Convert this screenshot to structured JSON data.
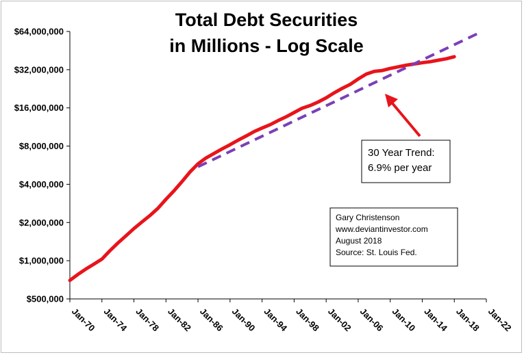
{
  "chart_data": {
    "type": "line",
    "title_lines": [
      "Total Debt Securities",
      "in Millions - Log Scale"
    ],
    "y_scale": "log2",
    "ylim": [
      500000,
      64000000
    ],
    "y_ticks": [
      {
        "value": 500000,
        "label": "$500,000"
      },
      {
        "value": 1000000,
        "label": "$1,000,000"
      },
      {
        "value": 2000000,
        "label": "$2,000,000"
      },
      {
        "value": 4000000,
        "label": "$4,000,000"
      },
      {
        "value": 8000000,
        "label": "$8,000,000"
      },
      {
        "value": 16000000,
        "label": "$16,000,000"
      },
      {
        "value": 32000000,
        "label": "$32,000,000"
      },
      {
        "value": 64000000,
        "label": "$64,000,000"
      }
    ],
    "xlim": [
      1970,
      2022
    ],
    "x_ticks": [
      {
        "value": 1970,
        "label": "Jan-70"
      },
      {
        "value": 1974,
        "label": "Jan-74"
      },
      {
        "value": 1978,
        "label": "Jan-78"
      },
      {
        "value": 1982,
        "label": "Jan-82"
      },
      {
        "value": 1986,
        "label": "Jan-86"
      },
      {
        "value": 1990,
        "label": "Jan-90"
      },
      {
        "value": 1994,
        "label": "Jan-94"
      },
      {
        "value": 1998,
        "label": "Jan-98"
      },
      {
        "value": 2002,
        "label": "Jan-02"
      },
      {
        "value": 2006,
        "label": "Jan-06"
      },
      {
        "value": 2010,
        "label": "Jan-10"
      },
      {
        "value": 2014,
        "label": "Jan-14"
      },
      {
        "value": 2018,
        "label": "Jan-18"
      },
      {
        "value": 2022,
        "label": "Jan-22"
      }
    ],
    "series": [
      {
        "name": "Total Debt Securities",
        "color": "#e8141b",
        "style": "solid",
        "x": [
          1970,
          1971,
          1972,
          1973,
          1974,
          1975,
          1976,
          1977,
          1978,
          1979,
          1980,
          1981,
          1982,
          1983,
          1984,
          1985,
          1986,
          1987,
          1988,
          1989,
          1990,
          1991,
          1992,
          1993,
          1994,
          1995,
          1996,
          1997,
          1998,
          1999,
          2000,
          2001,
          2002,
          2003,
          2004,
          2005,
          2006,
          2007,
          2008,
          2009,
          2010,
          2011,
          2012,
          2013,
          2014,
          2015,
          2016,
          2017,
          2018
        ],
        "y": [
          700000,
          780000,
          860000,
          940000,
          1030000,
          1200000,
          1380000,
          1570000,
          1790000,
          2020000,
          2270000,
          2590000,
          3050000,
          3550000,
          4200000,
          5000000,
          5800000,
          6450000,
          7000000,
          7600000,
          8200000,
          8900000,
          9600000,
          10400000,
          11100000,
          11800000,
          12700000,
          13600000,
          14700000,
          15900000,
          16700000,
          17800000,
          19200000,
          21000000,
          22800000,
          24500000,
          27000000,
          29500000,
          31000000,
          31500000,
          32700000,
          33700000,
          34700000,
          35500000,
          36300000,
          37000000,
          38000000,
          39000000,
          40500000
        ]
      },
      {
        "name": "30 Year Trend",
        "color": "#7b3fb6",
        "style": "dashed",
        "x": [
          1986,
          2021
        ],
        "y": [
          5500000,
          62000000
        ]
      }
    ],
    "annotations": [
      {
        "text_lines": [
          "30 Year Trend:",
          "6.9% per year"
        ]
      },
      {
        "text_lines": [
          "Gary Christenson",
          "www.deviantinvestor.com",
          "August 2018",
          "Source: St. Louis Fed."
        ]
      }
    ]
  }
}
